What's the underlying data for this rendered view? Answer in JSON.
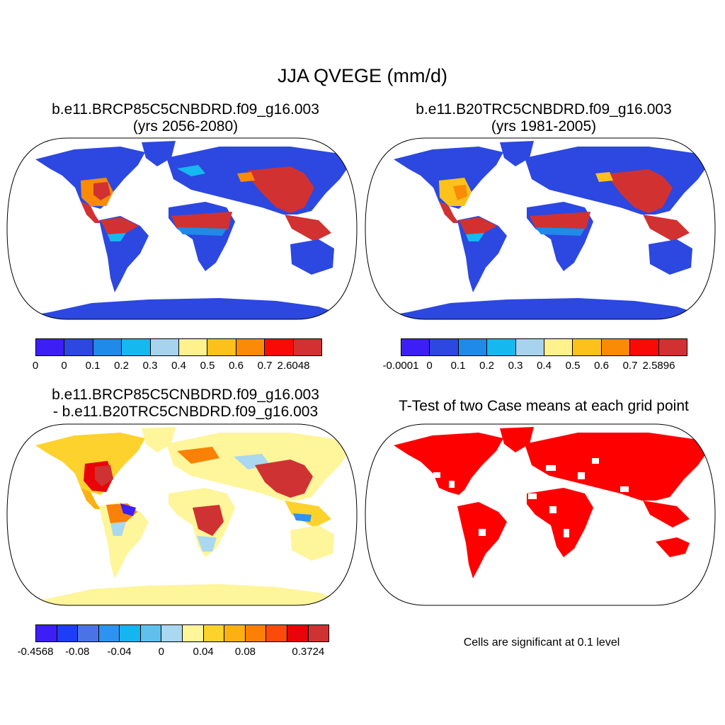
{
  "main_title": "JJA QVEGE (mm/d)",
  "panels": [
    {
      "title_line1": "b.e11.BRCP85C5CNBDRD.f09_g16.003",
      "title_line2": "(yrs 2056-2080)"
    },
    {
      "title_line1": "b.e11.B20TRC5CNBDRD.f09_g16.003",
      "title_line2": "(yrs 1981-2005)"
    },
    {
      "title_line1": "b.e11.BRCP85C5CNBDRD.f09_g16.003",
      "title_line2": "- b.e11.B20TRC5CNBDRD.f09_g16.003"
    },
    {
      "title_line1": "T-Test of two Case means at each grid point"
    }
  ],
  "colorbars": [
    {
      "colors": [
        "#3d1ff5",
        "#2c48e0",
        "#1f8ae8",
        "#16b8f0",
        "#a7d3ee",
        "#fff18c",
        "#fcc11a",
        "#fb8a06",
        "#fa0a06",
        "#d23131"
      ],
      "labels": [
        "0",
        "0",
        "0.1",
        "0.2",
        "0.3",
        "0.4",
        "0.5",
        "0.6",
        "0.7",
        "2.6048"
      ]
    },
    {
      "colors": [
        "#3d1ff5",
        "#2c48e0",
        "#1f8ae8",
        "#16b8f0",
        "#a7d3ee",
        "#fff18c",
        "#fcc11a",
        "#fb8a06",
        "#fa0a06",
        "#d23131"
      ],
      "labels": [
        "-0.0001",
        "0",
        "0.1",
        "0.2",
        "0.3",
        "0.4",
        "0.5",
        "0.6",
        "0.7",
        "2.5896"
      ]
    },
    {
      "colors": [
        "#3d1ff5",
        "#1e3ef5",
        "#4a74e6",
        "#2c94ee",
        "#14b5f0",
        "#5fc0ee",
        "#a9d8f0",
        "#fff59a",
        "#fed22c",
        "#fcb012",
        "#fb8006",
        "#fb4a0a",
        "#e80408",
        "#cf3232"
      ],
      "labels": [
        "-0.4568",
        "",
        "-0.08",
        "",
        "-0.04",
        "",
        "0",
        "",
        "0.04",
        "",
        "0.08",
        "",
        "",
        "0.3724"
      ]
    }
  ],
  "significance_note": "Cells are significant at 0.1 level"
}
